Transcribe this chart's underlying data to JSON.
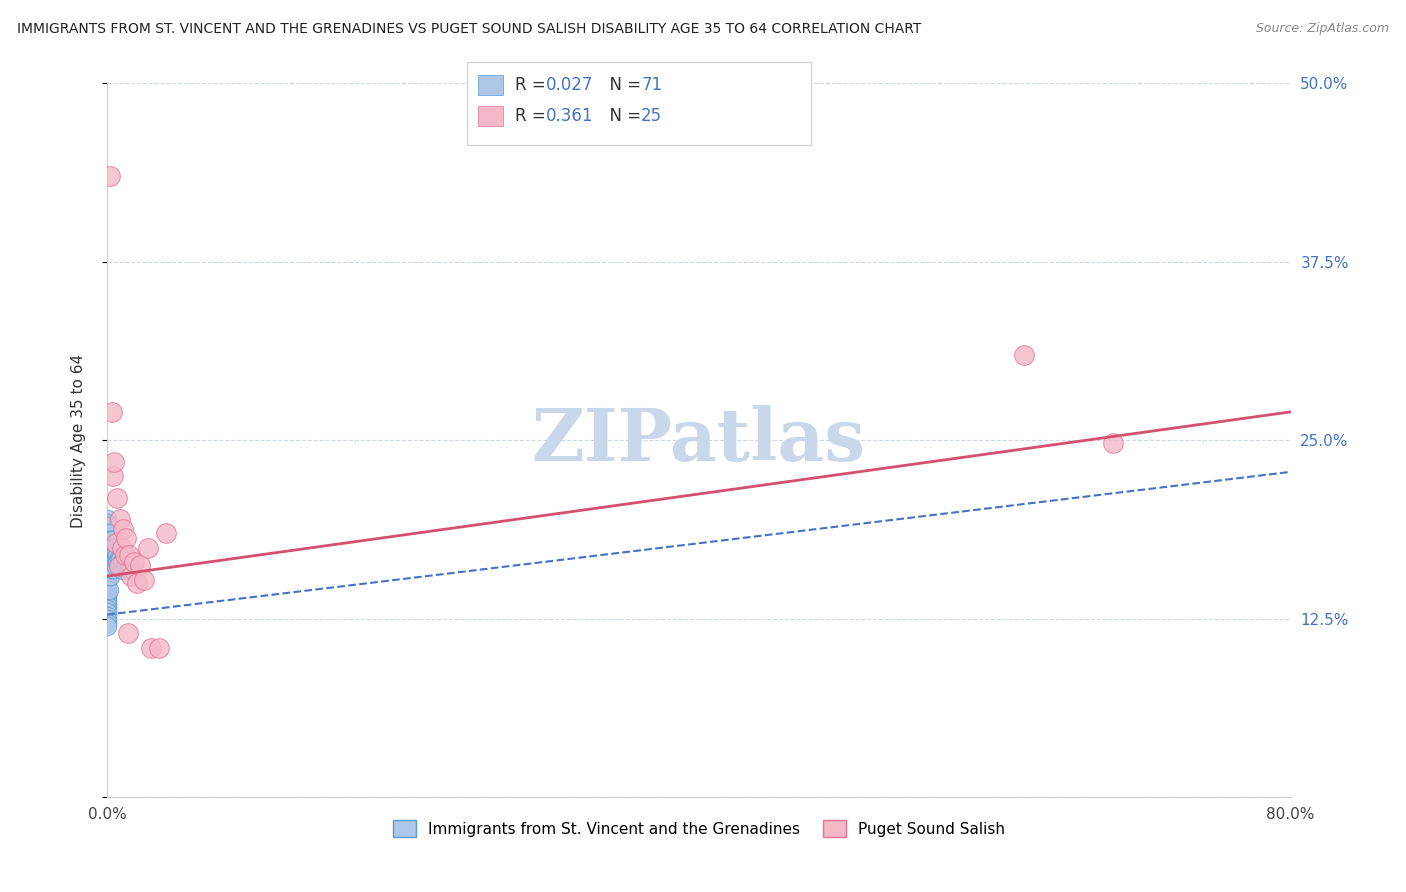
{
  "title": "IMMIGRANTS FROM ST. VINCENT AND THE GRENADINES VS PUGET SOUND SALISH DISABILITY AGE 35 TO 64 CORRELATION CHART",
  "source": "Source: ZipAtlas.com",
  "ylabel": "Disability Age 35 to 64",
  "xlim": [
    0,
    0.8
  ],
  "ylim": [
    0,
    0.5
  ],
  "xticks": [
    0.0,
    0.2,
    0.4,
    0.6,
    0.8
  ],
  "yticks": [
    0.0,
    0.125,
    0.25,
    0.375,
    0.5
  ],
  "xticklabels": [
    "0.0%",
    "",
    "",
    "",
    "80.0%"
  ],
  "yticklabels": [
    "12.5%",
    "25.0%",
    "37.5%",
    "50.0%"
  ],
  "blue_R": 0.027,
  "blue_N": 71,
  "pink_R": 0.361,
  "pink_N": 25,
  "blue_color": "#aec6e8",
  "blue_edge": "#5b9bd5",
  "pink_color": "#f4b8c8",
  "pink_edge": "#e87090",
  "trend_blue_color": "#4472c4",
  "trend_pink_color": "#d45070",
  "tick_label_color": "#4472c4",
  "watermark_color": "#c8d8ea",
  "legend_label_blue": "Immigrants from St. Vincent and the Grenadines",
  "legend_label_pink": "Puget Sound Salish",
  "blue_trend_x0": 0.0,
  "blue_trend_y0": 0.128,
  "blue_trend_x1": 0.8,
  "blue_trend_y1": 0.228,
  "pink_trend_x0": 0.0,
  "pink_trend_y0": 0.155,
  "pink_trend_x1": 0.8,
  "pink_trend_y1": 0.27,
  "blue_x": [
    0.0,
    0.0,
    0.0,
    0.0,
    0.0,
    0.0,
    0.0,
    0.0,
    0.0,
    0.0,
    0.0,
    0.0,
    0.0,
    0.0,
    0.0,
    0.0,
    0.0,
    0.0,
    0.0,
    0.0,
    0.0,
    0.0,
    0.0,
    0.0,
    0.0,
    0.0,
    0.0,
    0.0,
    0.0,
    0.0,
    0.001,
    0.001,
    0.001,
    0.001,
    0.002,
    0.002,
    0.002,
    0.002,
    0.002,
    0.002,
    0.002,
    0.003,
    0.003,
    0.003,
    0.003,
    0.003,
    0.004,
    0.004,
    0.004,
    0.004,
    0.005,
    0.005,
    0.005,
    0.006,
    0.006,
    0.006,
    0.007,
    0.007,
    0.008,
    0.008,
    0.009,
    0.009,
    0.01,
    0.01,
    0.011,
    0.011,
    0.012,
    0.013,
    0.014,
    0.015,
    0.016
  ],
  "blue_y": [
    0.195,
    0.192,
    0.188,
    0.185,
    0.182,
    0.18,
    0.178,
    0.175,
    0.172,
    0.17,
    0.167,
    0.165,
    0.162,
    0.16,
    0.157,
    0.155,
    0.152,
    0.15,
    0.148,
    0.145,
    0.142,
    0.14,
    0.137,
    0.135,
    0.132,
    0.13,
    0.127,
    0.125,
    0.122,
    0.12,
    0.19,
    0.175,
    0.16,
    0.145,
    0.185,
    0.18,
    0.175,
    0.17,
    0.165,
    0.16,
    0.155,
    0.18,
    0.175,
    0.17,
    0.165,
    0.16,
    0.175,
    0.17,
    0.165,
    0.16,
    0.175,
    0.17,
    0.165,
    0.172,
    0.167,
    0.162,
    0.17,
    0.165,
    0.168,
    0.163,
    0.167,
    0.162,
    0.165,
    0.16,
    0.164,
    0.159,
    0.163,
    0.162,
    0.161,
    0.161,
    0.16
  ],
  "pink_x": [
    0.002,
    0.003,
    0.004,
    0.005,
    0.006,
    0.007,
    0.008,
    0.009,
    0.01,
    0.011,
    0.012,
    0.013,
    0.014,
    0.015,
    0.016,
    0.018,
    0.02,
    0.022,
    0.025,
    0.028,
    0.03,
    0.035,
    0.04,
    0.62,
    0.68
  ],
  "pink_y": [
    0.435,
    0.27,
    0.225,
    0.235,
    0.178,
    0.21,
    0.162,
    0.195,
    0.175,
    0.188,
    0.17,
    0.182,
    0.115,
    0.17,
    0.155,
    0.165,
    0.15,
    0.163,
    0.152,
    0.175,
    0.105,
    0.105,
    0.185,
    0.31,
    0.248
  ]
}
